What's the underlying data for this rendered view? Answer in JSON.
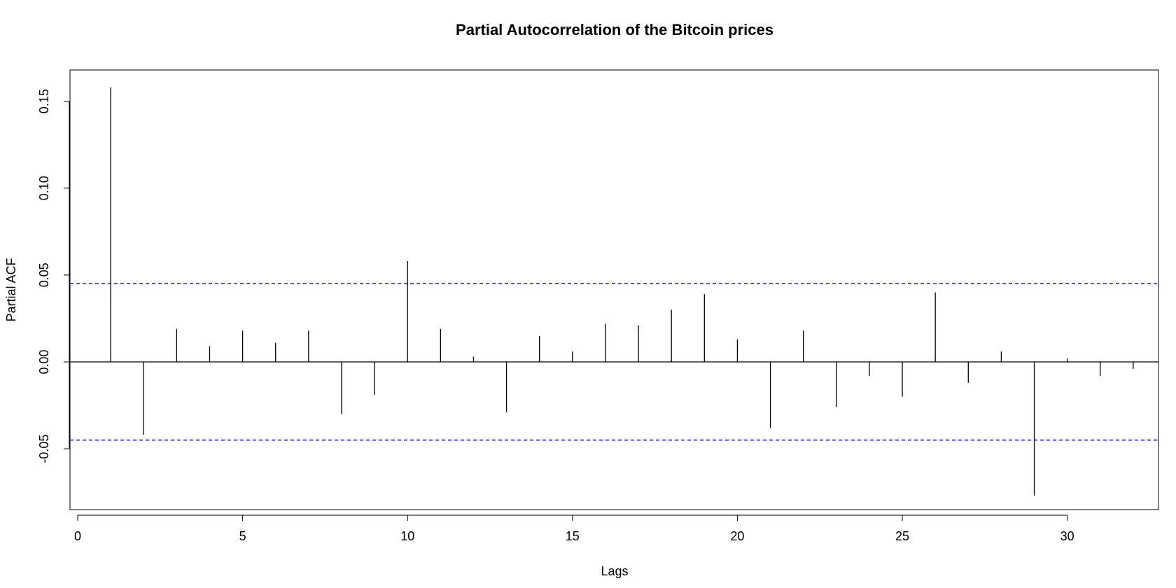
{
  "chart_data": {
    "type": "bar",
    "title": "Partial Autocorrelation of the Bitcoin prices",
    "xlabel": "Lags",
    "ylabel": "Partial ACF",
    "xlim": [
      0,
      33
    ],
    "ylim": [
      -0.085,
      0.168
    ],
    "x_ticks": [
      0,
      5,
      10,
      15,
      20,
      25,
      30
    ],
    "y_ticks": [
      -0.05,
      0.0,
      0.05,
      0.1,
      0.15
    ],
    "y_tick_labels": [
      "-0.05",
      "0.00",
      "0.05",
      "0.10",
      "0.15"
    ],
    "x_tick_labels": [
      "0",
      "5",
      "10",
      "15",
      "20",
      "25",
      "30"
    ],
    "confidence_bounds": [
      0.045,
      -0.045
    ],
    "colors": {
      "bars": "#000000",
      "bounds": "#0000ff",
      "zero_line": "#000000"
    },
    "x": [
      1,
      2,
      3,
      4,
      5,
      6,
      7,
      8,
      9,
      10,
      11,
      12,
      13,
      14,
      15,
      16,
      17,
      18,
      19,
      20,
      21,
      22,
      23,
      24,
      25,
      26,
      27,
      28,
      29,
      30,
      31,
      32
    ],
    "values": [
      0.158,
      -0.042,
      0.019,
      0.009,
      0.018,
      0.011,
      0.018,
      -0.03,
      -0.019,
      0.058,
      0.019,
      0.003,
      -0.029,
      0.015,
      0.006,
      0.022,
      0.021,
      0.03,
      0.039,
      0.013,
      -0.038,
      0.018,
      -0.026,
      -0.008,
      -0.02,
      0.04,
      -0.012,
      0.006,
      -0.077,
      0.002,
      -0.008,
      -0.004
    ]
  }
}
